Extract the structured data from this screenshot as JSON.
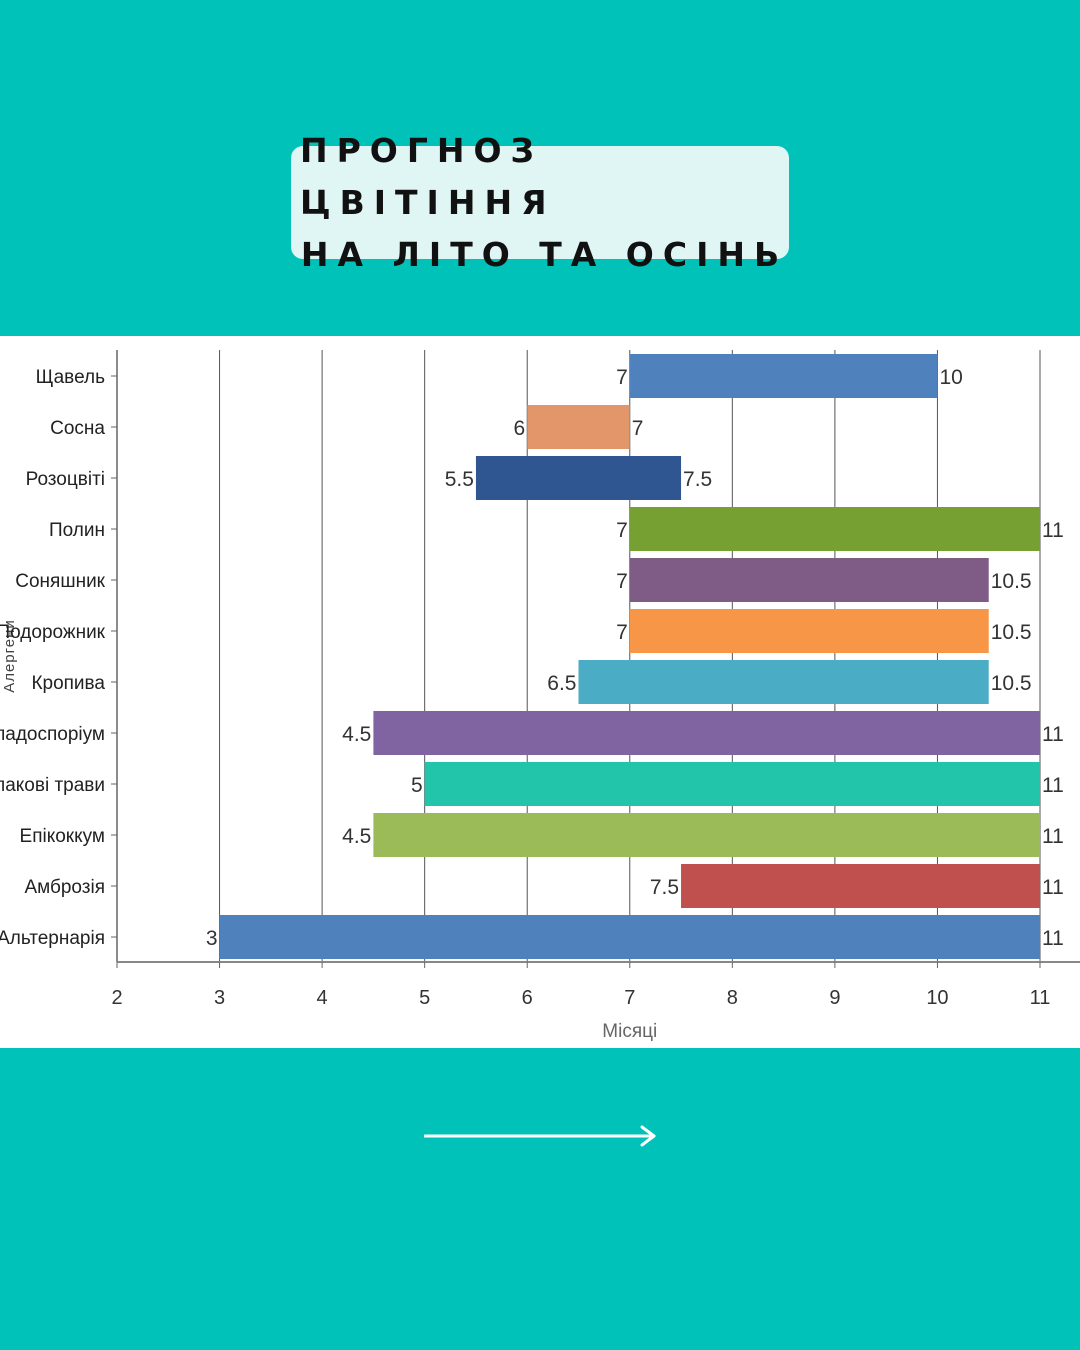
{
  "header": {
    "title_line1": "ПРОГНОЗ ЦВІТІННЯ",
    "title_line2": "НА ЛІТО ТА ОСІНЬ"
  },
  "chart_data": {
    "type": "bar",
    "orientation": "horizontal-range",
    "title": "",
    "xlabel": "Місяці",
    "ylabel": "Алергени",
    "xlim": [
      2,
      11
    ],
    "xticks": [
      "2",
      "3",
      "4",
      "5",
      "6",
      "7",
      "8",
      "9",
      "10",
      "11"
    ],
    "grid": "vertical",
    "categories": [
      "Щавель",
      "Сосна",
      "Розоцвіті",
      "Полин",
      "Соняшник",
      "Подорожник",
      "Кропива",
      "Кладоспоріум",
      "Злакові трави",
      "Епікоккум",
      "Амброзія",
      "Альтернарія"
    ],
    "series": [
      {
        "start": [
          7,
          6,
          5.5,
          7,
          7,
          7,
          6.5,
          4.5,
          5,
          4.5,
          7.5,
          3
        ],
        "end": [
          10,
          7,
          7.5,
          11,
          10.5,
          10.5,
          10.5,
          11,
          11,
          11,
          11,
          11
        ],
        "start_labels": [
          "7",
          "6",
          "5.5",
          "7",
          "7",
          "7",
          "6.5",
          "4.5",
          "5",
          "4.5",
          "7.5",
          "3"
        ],
        "end_labels": [
          "10",
          "7",
          "7.5",
          "11",
          "10.5",
          "10.5",
          "10.5",
          "11",
          "11",
          "11",
          "11",
          "11"
        ],
        "colors": [
          "#4f81bd",
          "#e4966b",
          "#2f5690",
          "#77a032",
          "#7f5c86",
          "#f79646",
          "#4bacc6",
          "#8064a2",
          "#22c4aa",
          "#9bbb59",
          "#c0504d",
          "#4f81bd"
        ]
      }
    ]
  }
}
